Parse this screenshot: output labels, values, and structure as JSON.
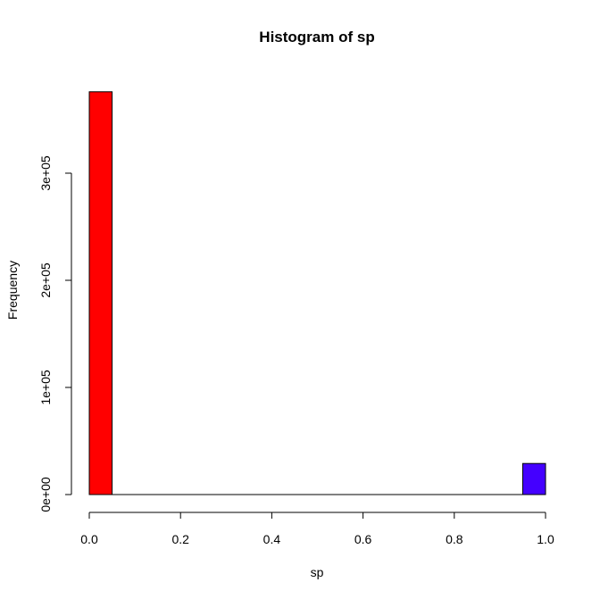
{
  "chart_data": {
    "type": "bar",
    "title": "Histogram of sp",
    "xlabel": "sp",
    "ylabel": "Frequency",
    "xlim": [
      0,
      1
    ],
    "ylim": [
      0,
      380000
    ],
    "bins": [
      {
        "x0": 0.0,
        "x1": 0.05,
        "count": 376000,
        "color": "#ff0000"
      },
      {
        "x0": 0.95,
        "x1": 1.0,
        "count": 29000,
        "color": "#4400ff"
      }
    ],
    "x_ticks": [
      0.0,
      0.2,
      0.4,
      0.6,
      0.8,
      1.0
    ],
    "x_tick_labels": [
      "0.0",
      "0.2",
      "0.4",
      "0.6",
      "0.8",
      "1.0"
    ],
    "y_ticks": [
      0,
      100000,
      200000,
      300000
    ],
    "y_tick_labels": [
      "0e+00",
      "1e+05",
      "2e+05",
      "3e+05"
    ],
    "grid": false,
    "legend": "none"
  }
}
